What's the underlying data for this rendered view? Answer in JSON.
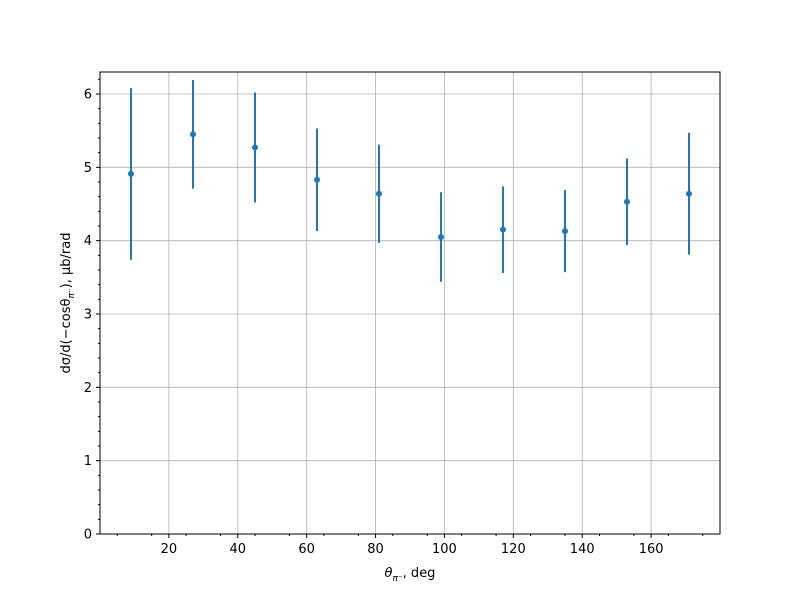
{
  "chart_data": {
    "type": "scatter",
    "title": "",
    "xlabel_base": "θ",
    "xlabel_sub": "π⁻",
    "xlabel_suffix": ", deg",
    "ylabel_prefix": "dσ/d(−cosθ",
    "ylabel_sub": "π⁻",
    "ylabel_suffix": "), μb/rad",
    "xlim": [
      0,
      180
    ],
    "ylim": [
      0,
      6.3
    ],
    "xticks": [
      20,
      40,
      60,
      80,
      100,
      120,
      140,
      160
    ],
    "yticks": [
      0,
      1,
      2,
      3,
      4,
      5,
      6
    ],
    "grid": true,
    "color": "#1f77b4",
    "series": [
      {
        "x": [
          9,
          27,
          45,
          63,
          81,
          99,
          117,
          135,
          153,
          171
        ],
        "y": [
          4.91,
          5.45,
          5.27,
          4.83,
          4.64,
          4.05,
          4.15,
          4.13,
          4.53,
          4.64
        ],
        "yerr": [
          1.17,
          0.74,
          0.75,
          0.7,
          0.67,
          0.61,
          0.59,
          0.56,
          0.59,
          0.83
        ]
      }
    ]
  }
}
